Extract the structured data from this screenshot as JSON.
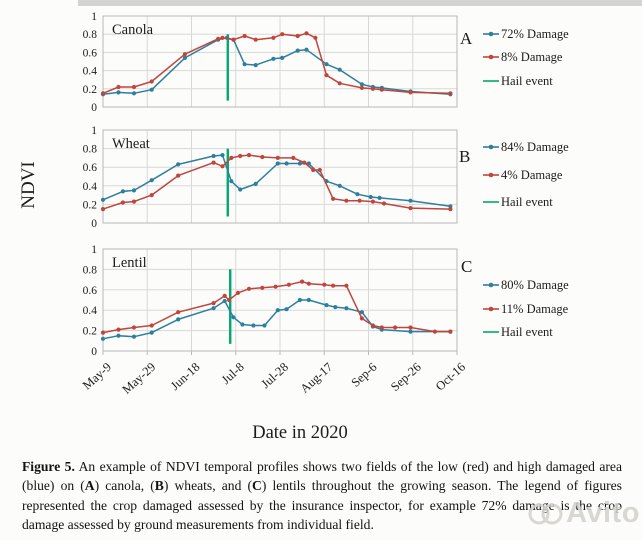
{
  "figure": {
    "ylabel": "NDVI",
    "xlabel": "Date in 2020",
    "x_tick_labels": [
      "May-9",
      "May-29",
      "Jun-18",
      "Jul-8",
      "Jul-28",
      "Aug-17",
      "Sep-6",
      "Sep-26",
      "Oct-16"
    ],
    "x_tick_days": [
      0,
      20,
      40,
      60,
      80,
      100,
      120,
      140,
      160
    ],
    "y_tick_labels": [
      "1",
      "0.8",
      "0.6",
      "0.4",
      "0.2",
      "0"
    ],
    "y_tick_values": [
      1,
      0.8,
      0.6,
      0.4,
      0.2,
      0
    ],
    "colors": {
      "high_damage": "#2d7f9d",
      "low_damage": "#c0453d",
      "hail": "#00a873",
      "grid": "#d8d8d8",
      "frame": "#b8b8b8",
      "text": "#1c1c1c"
    }
  },
  "chart_data": [
    {
      "type": "line",
      "title": "Canola",
      "panel_label": "A",
      "ylim": [
        0,
        1
      ],
      "xlim_days": [
        0,
        160
      ],
      "grid": true,
      "legend_position": "right",
      "hail_day": 56.4,
      "series": [
        {
          "name": "72% Damage",
          "color_key": "high_damage",
          "x": [
            0,
            7,
            14,
            22,
            37,
            52,
            56,
            59,
            64,
            69,
            77,
            81,
            88,
            92,
            101,
            107,
            117,
            122,
            126,
            139,
            157
          ],
          "y": [
            0.14,
            0.16,
            0.15,
            0.19,
            0.54,
            0.74,
            0.76,
            0.74,
            0.47,
            0.46,
            0.53,
            0.54,
            0.62,
            0.63,
            0.47,
            0.41,
            0.25,
            0.22,
            0.21,
            0.17,
            0.14
          ]
        },
        {
          "name": "8% Damage",
          "color_key": "low_damage",
          "x": [
            0,
            7,
            14,
            22,
            37,
            52,
            54,
            59,
            64,
            69,
            77,
            81,
            88,
            92,
            96,
            101,
            107,
            117,
            122,
            126,
            139,
            157
          ],
          "y": [
            0.15,
            0.22,
            0.22,
            0.28,
            0.58,
            0.75,
            0.76,
            0.74,
            0.78,
            0.74,
            0.76,
            0.8,
            0.78,
            0.81,
            0.76,
            0.35,
            0.26,
            0.21,
            0.2,
            0.19,
            0.16,
            0.15
          ]
        }
      ],
      "legend": [
        {
          "label": "72% Damage",
          "color_key": "high_damage",
          "marker": true
        },
        {
          "label": "8% Damage",
          "color_key": "low_damage",
          "marker": true
        },
        {
          "label": "Hail event",
          "color_key": "hail",
          "marker": false
        }
      ]
    },
    {
      "type": "line",
      "title": "Wheat",
      "panel_label": "B",
      "ylim": [
        0,
        1
      ],
      "xlim_days": [
        0,
        160
      ],
      "grid": true,
      "legend_position": "right",
      "hail_day": 56.4,
      "series": [
        {
          "name": "84% Damage",
          "color_key": "high_damage",
          "x": [
            0,
            9,
            14,
            22,
            34,
            50,
            54,
            58,
            62,
            69,
            79,
            83,
            89,
            93,
            101,
            107,
            115,
            121,
            125,
            139,
            157
          ],
          "y": [
            0.25,
            0.34,
            0.35,
            0.46,
            0.63,
            0.72,
            0.73,
            0.45,
            0.36,
            0.42,
            0.64,
            0.64,
            0.64,
            0.64,
            0.45,
            0.4,
            0.31,
            0.28,
            0.27,
            0.24,
            0.18
          ]
        },
        {
          "name": "4% Damage",
          "color_key": "low_damage",
          "x": [
            0,
            9,
            14,
            22,
            34,
            50,
            54,
            58,
            62,
            66,
            72,
            79,
            86,
            91,
            95,
            98,
            104,
            110,
            116,
            122,
            127,
            139,
            157
          ],
          "y": [
            0.15,
            0.22,
            0.23,
            0.3,
            0.51,
            0.65,
            0.61,
            0.7,
            0.72,
            0.73,
            0.71,
            0.7,
            0.7,
            0.65,
            0.57,
            0.57,
            0.26,
            0.24,
            0.24,
            0.23,
            0.21,
            0.16,
            0.15
          ]
        }
      ],
      "legend": [
        {
          "label": "84% Damage",
          "color_key": "high_damage",
          "marker": true
        },
        {
          "label": "4% Damage",
          "color_key": "low_damage",
          "marker": true
        },
        {
          "label": "Hail event",
          "color_key": "hail",
          "marker": false
        }
      ]
    },
    {
      "type": "line",
      "title": "Lentil",
      "panel_label": "C",
      "ylim": [
        0,
        1
      ],
      "xlim_days": [
        0,
        160
      ],
      "grid": true,
      "legend_position": "right",
      "hail_day": 57.5,
      "series": [
        {
          "name": "80% Damage",
          "color_key": "high_damage",
          "x": [
            0,
            7,
            14,
            22,
            34,
            50,
            55,
            59,
            63,
            68,
            73,
            79,
            83,
            89,
            93,
            101,
            105,
            110,
            117,
            122,
            126,
            139,
            157
          ],
          "y": [
            0.12,
            0.15,
            0.14,
            0.18,
            0.31,
            0.42,
            0.49,
            0.33,
            0.26,
            0.25,
            0.25,
            0.4,
            0.41,
            0.5,
            0.5,
            0.45,
            0.43,
            0.42,
            0.38,
            0.24,
            0.21,
            0.19,
            0.19
          ]
        },
        {
          "name": "11% Damage",
          "color_key": "low_damage",
          "x": [
            0,
            7,
            14,
            22,
            34,
            50,
            55,
            57,
            61,
            66,
            72,
            78,
            84,
            90,
            93,
            100,
            104,
            110,
            117,
            122,
            126,
            132,
            139,
            150,
            157
          ],
          "y": [
            0.18,
            0.21,
            0.23,
            0.25,
            0.38,
            0.47,
            0.54,
            0.5,
            0.57,
            0.61,
            0.62,
            0.63,
            0.65,
            0.68,
            0.66,
            0.65,
            0.64,
            0.64,
            0.32,
            0.25,
            0.23,
            0.23,
            0.23,
            0.19,
            0.19
          ]
        }
      ],
      "legend": [
        {
          "label": "80% Damage",
          "color_key": "high_damage",
          "marker": true
        },
        {
          "label": "11% Damage",
          "color_key": "low_damage",
          "marker": true
        },
        {
          "label": "Hail event",
          "color_key": "hail",
          "marker": false
        }
      ]
    }
  ],
  "caption": {
    "segments": [
      {
        "text": "Figure 5.",
        "bold": true
      },
      {
        "text": " An example of NDVI temporal profiles shows two fields of the low (red) and high damaged area (blue) on (",
        "bold": false
      },
      {
        "text": "A",
        "bold": true
      },
      {
        "text": ") canola, (",
        "bold": false
      },
      {
        "text": "B",
        "bold": true
      },
      {
        "text": ") wheats, and (",
        "bold": false
      },
      {
        "text": "C",
        "bold": true
      },
      {
        "text": ") lentils throughout the growing season. The legend of figures represented the crop damaged assessed by the insurance inspector, for example 72% damage is the crop damage assessed by ground measurements from individual field.",
        "bold": false
      }
    ]
  },
  "watermark": {
    "text": "Avito"
  }
}
